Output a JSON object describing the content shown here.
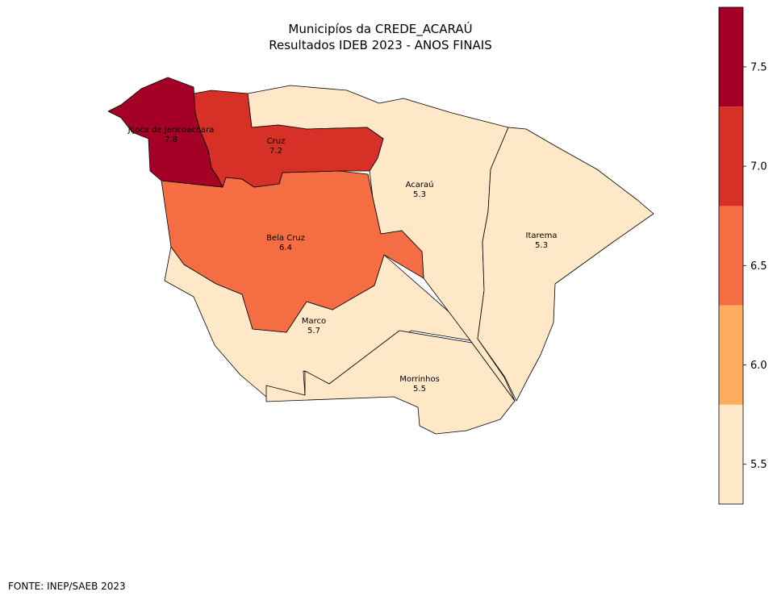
{
  "title_line1": "Municipíos da CREDE_ACARAÚ",
  "title_line2": "Resultados IDEB 2023 - ANOS FINAIS",
  "source": "FONTE: INEP/SAEB 2023",
  "municipalities": [
    {
      "name": "Jijoca de Jericoacoara",
      "value": "7.8",
      "color": "#a50026"
    },
    {
      "name": "Cruz",
      "value": "7.2",
      "color": "#d73027"
    },
    {
      "name": "Bela Cruz",
      "value": "6.4",
      "color": "#f46d43"
    },
    {
      "name": "Acaraú",
      "value": "5.3",
      "color": "#fee8c8"
    },
    {
      "name": "Itarema",
      "value": "5.3",
      "color": "#fee8c8"
    },
    {
      "name": "Marco",
      "value": "5.7",
      "color": "#fee8c8"
    },
    {
      "name": "Morrinhos",
      "value": "5.5",
      "color": "#fee8c8"
    }
  ],
  "colorbar": {
    "range": [
      5.3,
      7.8
    ],
    "ticks": [
      "5.5",
      "6.0",
      "6.5",
      "7.0",
      "7.5"
    ],
    "bins": [
      {
        "from": 5.3,
        "to": 5.8,
        "color": "#fee8c8"
      },
      {
        "from": 5.8,
        "to": 6.3,
        "color": "#fdae61"
      },
      {
        "from": 6.3,
        "to": 6.8,
        "color": "#f46d43"
      },
      {
        "from": 6.8,
        "to": 7.3,
        "color": "#d73027"
      },
      {
        "from": 7.3,
        "to": 7.8,
        "color": "#a50026"
      }
    ]
  }
}
